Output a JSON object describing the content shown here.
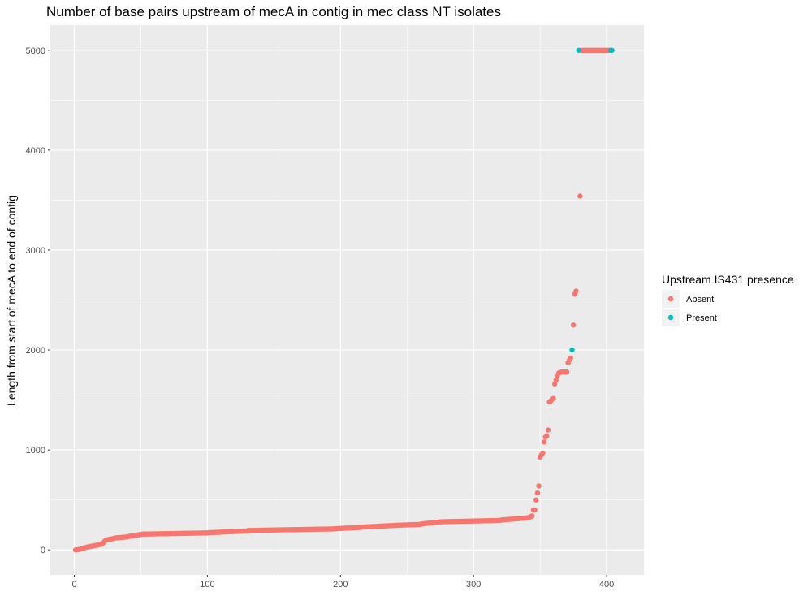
{
  "chart_data": {
    "type": "scatter",
    "title": "Number of base pairs upstream of mecA in contig in mec class NT isolates",
    "xlabel": "",
    "ylabel": "Length from start of mecA to end of contig",
    "xlim": [
      -18,
      428
    ],
    "ylim": [
      -250,
      5250
    ],
    "x_ticks": [
      0,
      100,
      200,
      300,
      400
    ],
    "y_ticks": [
      0,
      1000,
      2000,
      3000,
      4000,
      5000
    ],
    "grid": true,
    "legend": {
      "title": "Upstream IS431 presence",
      "position": "right",
      "entries": [
        {
          "label": "Absent",
          "color": "#F8766D"
        },
        {
          "label": "Present",
          "color": "#00BFC4"
        }
      ]
    },
    "series": [
      {
        "name": "Absent",
        "color": "#F8766D",
        "segments": [
          {
            "from": [
              1,
              0
            ],
            "to": [
              4,
              5
            ],
            "step": 1
          },
          {
            "from": [
              5,
              10
            ],
            "to": [
              10,
              30
            ],
            "step": 1
          },
          {
            "from": [
              11,
              32
            ],
            "to": [
              20,
              55
            ],
            "step": 1
          },
          {
            "from": [
              21,
              60
            ],
            "to": [
              23,
              90
            ],
            "step": 1
          },
          {
            "from": [
              24,
              100
            ],
            "to": [
              30,
              115
            ],
            "step": 1
          },
          {
            "from": [
              31,
              120
            ],
            "to": [
              40,
              130
            ],
            "step": 1
          },
          {
            "from": [
              41,
              135
            ],
            "to": [
              50,
              155
            ],
            "step": 1
          },
          {
            "from": [
              51,
              158
            ],
            "to": [
              100,
              170
            ],
            "step": 1
          },
          {
            "from": [
              101,
              172
            ],
            "to": [
              130,
              190
            ],
            "step": 1
          },
          {
            "from": [
              131,
              195
            ],
            "to": [
              195,
              210
            ],
            "step": 1
          },
          {
            "from": [
              196,
              212
            ],
            "to": [
              215,
              225
            ],
            "step": 1
          },
          {
            "from": [
              216,
              228
            ],
            "to": [
              240,
              245
            ],
            "step": 1
          },
          {
            "from": [
              241,
              246
            ],
            "to": [
              260,
              255
            ],
            "step": 1
          },
          {
            "from": [
              261,
              260
            ],
            "to": [
              275,
              280
            ],
            "step": 1
          },
          {
            "from": [
              276,
              282
            ],
            "to": [
              320,
              295
            ],
            "step": 1
          },
          {
            "from": [
              321,
              300
            ],
            "to": [
              340,
              320
            ],
            "step": 1
          },
          {
            "from": [
              341,
              322
            ],
            "to": [
              344,
              340
            ],
            "step": 1
          }
        ],
        "points": [
          [
            345,
            400
          ],
          [
            346,
            400
          ],
          [
            347,
            500
          ],
          [
            348,
            570
          ],
          [
            349,
            640
          ],
          [
            350,
            930
          ],
          [
            351,
            950
          ],
          [
            352,
            970
          ],
          [
            353,
            1080
          ],
          [
            354,
            1130
          ],
          [
            355,
            1140
          ],
          [
            356,
            1200
          ],
          [
            357,
            1480
          ],
          [
            358,
            1490
          ],
          [
            359,
            1510
          ],
          [
            360,
            1515
          ],
          [
            361,
            1660
          ],
          [
            362,
            1700
          ],
          [
            363,
            1740
          ],
          [
            364,
            1770
          ],
          [
            365,
            1775
          ],
          [
            366,
            1780
          ],
          [
            367,
            1780
          ],
          [
            368,
            1780
          ],
          [
            369,
            1780
          ],
          [
            370,
            1780
          ],
          [
            371,
            1870
          ],
          [
            372,
            1900
          ],
          [
            373,
            1920
          ],
          [
            375,
            2250
          ],
          [
            376,
            2560
          ],
          [
            377,
            2590
          ],
          [
            380,
            3540
          ],
          [
            381,
            5000
          ],
          [
            382,
            5000
          ],
          [
            383,
            5000
          ],
          [
            384,
            5000
          ],
          [
            385,
            5000
          ],
          [
            386,
            5000
          ],
          [
            387,
            5000
          ],
          [
            388,
            5000
          ],
          [
            389,
            5000
          ],
          [
            390,
            5000
          ],
          [
            391,
            5000
          ],
          [
            392,
            5000
          ],
          [
            393,
            5000
          ],
          [
            394,
            5000
          ],
          [
            395,
            5000
          ],
          [
            396,
            5000
          ],
          [
            397,
            5000
          ],
          [
            398,
            5000
          ],
          [
            399,
            5000
          ],
          [
            400,
            5000
          ],
          [
            401,
            5000
          ],
          [
            402,
            5000
          ]
        ]
      },
      {
        "name": "Present",
        "color": "#00BFC4",
        "points": [
          [
            374,
            2000
          ],
          [
            379,
            5000
          ],
          [
            403,
            5000
          ],
          [
            404,
            5000
          ]
        ]
      }
    ]
  }
}
